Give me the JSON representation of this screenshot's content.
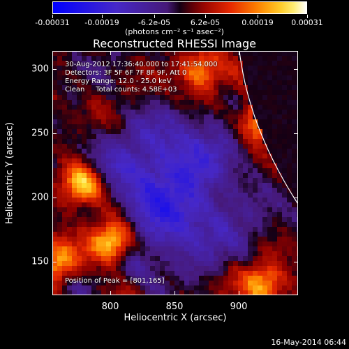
{
  "colorbar": {
    "tick_labels": [
      "-0.00031",
      "-0.00019",
      "-6.2e-05",
      "6.2e-05",
      "0.00019",
      "0.00031"
    ],
    "range": [
      -0.00031,
      0.00031
    ],
    "units": "(photons cm⁻² s⁻¹ asec⁻²)"
  },
  "info": {
    "time_range": "30-Aug-2012 17:36:40.000 to 17:41:54.000",
    "detectors": "Detectors: 3F 5F 6F 7F 8F 9F, Att 0",
    "energy_range": "Energy Range: 12.0 - 25.0 keV",
    "algorithm": "Clean     Total counts: 4.58E+03",
    "peak": "Position of Peak = [801,165]"
  },
  "footer": "16-May-2014 06:44",
  "chart_data": {
    "type": "heatmap",
    "title": "Reconstructed RHESSI Image",
    "xlabel": "Heliocentric X (arcsec)",
    "ylabel": "Heliocentric Y (arcsec)",
    "xlim": [
      755,
      946
    ],
    "ylim": [
      124,
      314
    ],
    "xticks": [
      800,
      850,
      900
    ],
    "yticks": [
      150,
      200,
      250,
      300
    ],
    "colormap": "blue-white-red-yellow (RHESSI std)",
    "peak": [
      801,
      165
    ],
    "solar_limb_visible": true,
    "bright_sources": [
      {
        "x": 801,
        "y": 165,
        "level": "peak"
      },
      {
        "x": 778,
        "y": 210,
        "level": "high"
      },
      {
        "x": 918,
        "y": 260,
        "level": "high"
      },
      {
        "x": 920,
        "y": 133,
        "level": "medium"
      },
      {
        "x": 870,
        "y": 300,
        "level": "medium"
      },
      {
        "x": 760,
        "y": 150,
        "level": "medium"
      }
    ]
  }
}
